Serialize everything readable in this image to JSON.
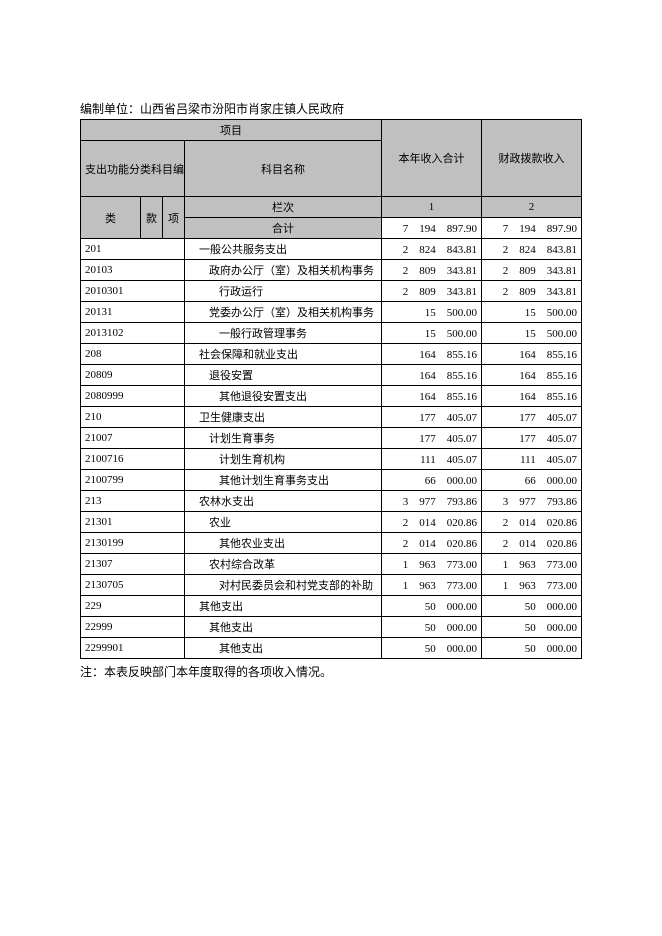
{
  "unit_label": "编制单位：山西省吕梁市汾阳市肖家庄镇人民政府",
  "headers": {
    "project": "项目",
    "income_total": "本年收入合计",
    "fiscal_income": "财政拨款收入",
    "func_code": "支出功能分类科目编码",
    "subject_name": "科目名称",
    "lei": "类",
    "kuan": "款",
    "xiang": "项",
    "lanci": "栏次",
    "col1": "1",
    "col2": "2",
    "heji": "合计"
  },
  "totals": {
    "v1": "7　194　897.90",
    "v2": "7　194　897.90"
  },
  "rows": [
    {
      "code": "201",
      "name": "一般公共服务支出",
      "indent": 0,
      "v1": "2　824　843.81",
      "v2": "2　824　843.81"
    },
    {
      "code": "20103",
      "name": "政府办公厅（室）及相关机构事务",
      "indent": 1,
      "v1": "2　809　343.81",
      "v2": "2　809　343.81"
    },
    {
      "code": "2010301",
      "name": "行政运行",
      "indent": 2,
      "v1": "2　809　343.81",
      "v2": "2　809　343.81"
    },
    {
      "code": "20131",
      "name": "党委办公厅（室）及相关机构事务",
      "indent": 1,
      "v1": "15　500.00",
      "v2": "15　500.00"
    },
    {
      "code": "2013102",
      "name": "一般行政管理事务",
      "indent": 2,
      "v1": "15　500.00",
      "v2": "15　500.00"
    },
    {
      "code": "208",
      "name": "社会保障和就业支出",
      "indent": 0,
      "v1": "164　855.16",
      "v2": "164　855.16"
    },
    {
      "code": "20809",
      "name": "退役安置",
      "indent": 1,
      "v1": "164　855.16",
      "v2": "164　855.16"
    },
    {
      "code": "2080999",
      "name": "其他退役安置支出",
      "indent": 2,
      "v1": "164　855.16",
      "v2": "164　855.16"
    },
    {
      "code": "210",
      "name": "卫生健康支出",
      "indent": 0,
      "v1": "177　405.07",
      "v2": "177　405.07"
    },
    {
      "code": "21007",
      "name": "计划生育事务",
      "indent": 1,
      "v1": "177　405.07",
      "v2": "177　405.07"
    },
    {
      "code": "2100716",
      "name": "计划生育机构",
      "indent": 2,
      "v1": "111　405.07",
      "v2": "111　405.07"
    },
    {
      "code": "2100799",
      "name": "其他计划生育事务支出",
      "indent": 2,
      "v1": "66　000.00",
      "v2": "66　000.00"
    },
    {
      "code": "213",
      "name": "农林水支出",
      "indent": 0,
      "v1": "3　977　793.86",
      "v2": "3　977　793.86"
    },
    {
      "code": "21301",
      "name": "农业",
      "indent": 1,
      "v1": "2　014　020.86",
      "v2": "2　014　020.86"
    },
    {
      "code": "2130199",
      "name": "其他农业支出",
      "indent": 2,
      "v1": "2　014　020.86",
      "v2": "2　014　020.86"
    },
    {
      "code": "21307",
      "name": "农村综合改革",
      "indent": 1,
      "v1": "1　963　773.00",
      "v2": "1　963　773.00"
    },
    {
      "code": "2130705",
      "name": "对村民委员会和村党支部的补助",
      "indent": 2,
      "v1": "1　963　773.00",
      "v2": "1　963　773.00"
    },
    {
      "code": "229",
      "name": "其他支出",
      "indent": 0,
      "v1": "50　000.00",
      "v2": "50　000.00"
    },
    {
      "code": "22999",
      "name": "其他支出",
      "indent": 1,
      "v1": "50　000.00",
      "v2": "50　000.00"
    },
    {
      "code": "2299901",
      "name": "其他支出",
      "indent": 2,
      "v1": "50　000.00",
      "v2": "50　000.00"
    }
  ],
  "note": "注：本表反映部门本年度取得的各项收入情况。"
}
